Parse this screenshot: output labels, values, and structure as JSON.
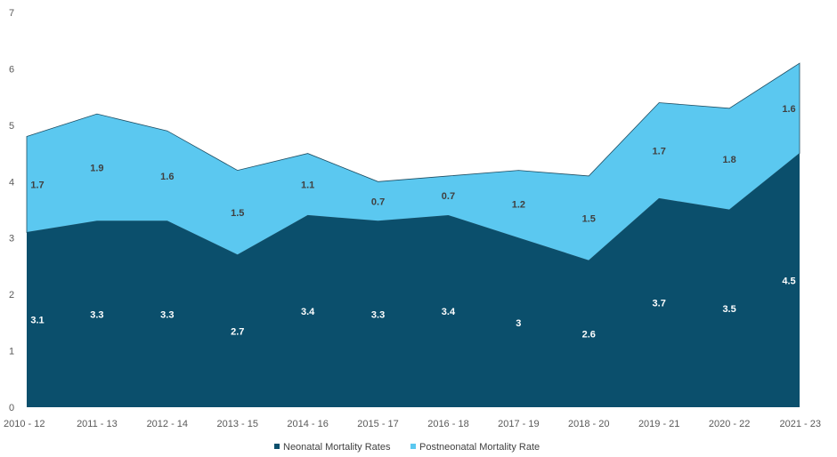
{
  "chart_data": {
    "type": "area",
    "stacked": true,
    "categories": [
      "2010 - 12",
      "2011 - 13",
      "2012 - 14",
      "2013 - 15",
      "2014 - 16",
      "2015 - 17",
      "2016 - 18",
      "2017 - 19",
      "2018 - 20",
      "2019 - 21",
      "2020 - 22",
      "2021 - 23"
    ],
    "series": [
      {
        "name": "Neonatal Mortality Rates",
        "color": "#0b4f6c",
        "label_color": "#ffffff",
        "values": [
          3.1,
          3.3,
          3.3,
          2.7,
          3.4,
          3.3,
          3.4,
          3,
          2.6,
          3.7,
          3.5,
          4.5
        ]
      },
      {
        "name": "Postneonatal Mortality Rate",
        "color": "#5bc8f0",
        "label_color": "#404040",
        "values": [
          1.7,
          1.9,
          1.6,
          1.5,
          1.1,
          0.7,
          0.7,
          1.2,
          1.5,
          1.7,
          1.8,
          1.6
        ]
      }
    ],
    "ylim": [
      0,
      7
    ],
    "yticks": [
      0,
      1,
      2,
      3,
      4,
      5,
      6,
      7
    ],
    "grid": false,
    "legend_position": "bottom"
  }
}
